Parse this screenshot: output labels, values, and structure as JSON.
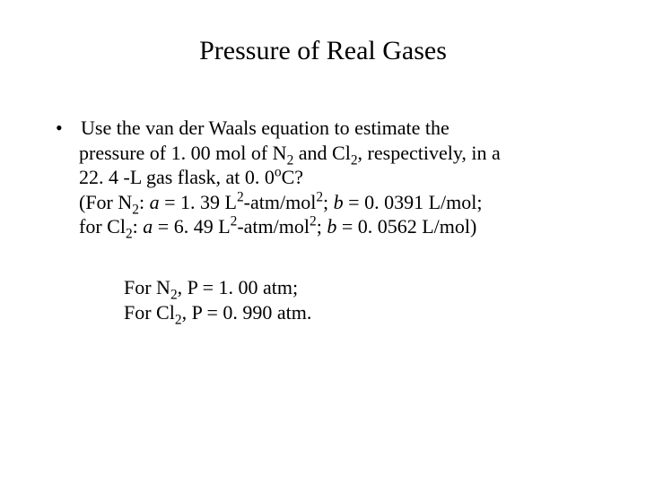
{
  "title": "Pressure of Real Gases",
  "problem": {
    "line1_a": "Use the van der Waals equation to estimate the",
    "line2_a": "pressure of 1. 00 mol of N",
    "line2_b": " and Cl",
    "line2_c": ", respectively, in a",
    "line3_a": "22. 4 -L gas flask, at 0. 0",
    "line3_b": "C?",
    "line4_a": "(For N",
    "line4_b": ": ",
    "line4_c": " = 1. 39 L",
    "line4_d": "-atm/mol",
    "line4_e": "; ",
    "line4_f": " = 0. 0391 L/mol;",
    "line5_a": " for Cl",
    "line5_b": ": ",
    "line5_c": " = 6. 49 L",
    "line5_d": "-atm/mol",
    "line5_e": "; ",
    "line5_f": " = 0. 0562 L/mol)",
    "sub2": "2",
    "sup2": "2",
    "deg": "o",
    "var_a": "a",
    "var_b": "b"
  },
  "answer": {
    "line1_a": "For N",
    "line1_b": ", P = 1. 00 atm;",
    "line2_a": "For Cl",
    "line2_b": ", P = 0. 990 atm.",
    "sub2": "2"
  },
  "style": {
    "background_color": "#ffffff",
    "text_color": "#000000",
    "font_family": "Times New Roman",
    "title_fontsize": 30,
    "body_fontsize": 22
  }
}
